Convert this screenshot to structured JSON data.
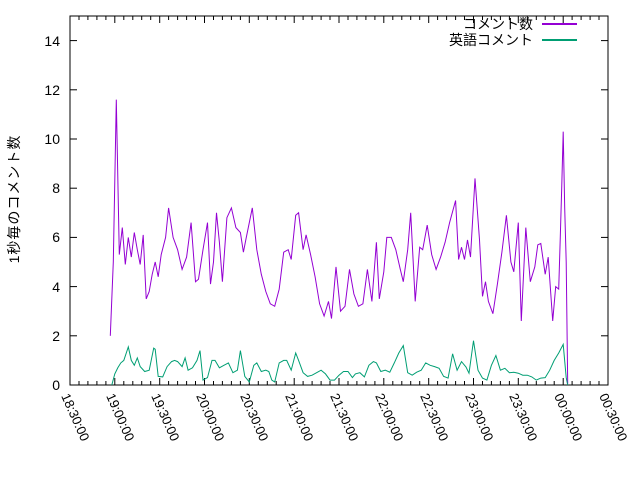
{
  "window": {
    "background": "#ffffff",
    "axis_color": "#000000"
  },
  "chart_data": {
    "type": "line",
    "title": "",
    "xlabel": "",
    "ylabel": "1秒毎のコメント数",
    "grid": false,
    "legend": {
      "position": "top-right"
    },
    "x_axis": {
      "start": "18:30:00",
      "end": "00:30:00",
      "tick_labels": [
        "18:30:00",
        "19:00:00",
        "19:30:00",
        "20:00:00",
        "20:30:00",
        "21:00:00",
        "21:30:00",
        "22:00:00",
        "22:30:00",
        "23:00:00",
        "23:30:00",
        "00:00:00",
        "00:30:00"
      ],
      "major_tick_minutes": 30,
      "minor_tick_minutes": 6
    },
    "y_axis": {
      "min": 0,
      "max": 15,
      "tick_step": 2,
      "tick_labels": [
        "0",
        "2",
        "4",
        "6",
        "8",
        "10",
        "12",
        "14"
      ]
    },
    "series": [
      {
        "name": "コメント数",
        "color": "#9400d3",
        "points": [
          [
            "18:57",
            2.0
          ],
          [
            "18:59",
            5.0
          ],
          [
            "19:01",
            11.6
          ],
          [
            "19:03",
            5.3
          ],
          [
            "19:05",
            6.4
          ],
          [
            "19:07",
            4.9
          ],
          [
            "19:09",
            6.0
          ],
          [
            "19:11",
            5.2
          ],
          [
            "19:13",
            6.2
          ],
          [
            "19:15",
            5.5
          ],
          [
            "19:17",
            4.9
          ],
          [
            "19:19",
            6.1
          ],
          [
            "19:21",
            3.5
          ],
          [
            "19:23",
            3.8
          ],
          [
            "19:25",
            4.5
          ],
          [
            "19:27",
            5.0
          ],
          [
            "19:29",
            4.4
          ],
          [
            "19:31",
            5.3
          ],
          [
            "19:34",
            6.0
          ],
          [
            "19:36",
            7.2
          ],
          [
            "19:39",
            6.0
          ],
          [
            "19:42",
            5.5
          ],
          [
            "19:45",
            4.7
          ],
          [
            "19:48",
            5.2
          ],
          [
            "19:51",
            6.6
          ],
          [
            "19:54",
            4.2
          ],
          [
            "19:56",
            4.3
          ],
          [
            "19:59",
            5.5
          ],
          [
            "20:02",
            6.6
          ],
          [
            "20:04",
            4.1
          ],
          [
            "20:06",
            5.0
          ],
          [
            "20:08",
            7.0
          ],
          [
            "20:10",
            5.8
          ],
          [
            "20:12",
            4.2
          ],
          [
            "20:15",
            6.8
          ],
          [
            "20:18",
            7.2
          ],
          [
            "20:21",
            6.4
          ],
          [
            "20:24",
            6.2
          ],
          [
            "20:26",
            5.4
          ],
          [
            "20:28",
            6.0
          ],
          [
            "20:32",
            7.2
          ],
          [
            "20:35",
            5.5
          ],
          [
            "20:38",
            4.5
          ],
          [
            "20:41",
            3.8
          ],
          [
            "20:44",
            3.3
          ],
          [
            "20:47",
            3.2
          ],
          [
            "20:50",
            3.9
          ],
          [
            "20:53",
            5.4
          ],
          [
            "20:56",
            5.5
          ],
          [
            "20:58",
            5.1
          ],
          [
            "21:01",
            6.9
          ],
          [
            "21:03",
            7.0
          ],
          [
            "21:06",
            5.5
          ],
          [
            "21:08",
            6.1
          ],
          [
            "21:11",
            5.3
          ],
          [
            "21:14",
            4.4
          ],
          [
            "21:17",
            3.3
          ],
          [
            "21:20",
            2.8
          ],
          [
            "21:23",
            3.4
          ],
          [
            "21:25",
            2.7
          ],
          [
            "21:28",
            4.8
          ],
          [
            "21:31",
            3.0
          ],
          [
            "21:34",
            3.2
          ],
          [
            "21:37",
            4.7
          ],
          [
            "21:40",
            3.7
          ],
          [
            "21:43",
            3.2
          ],
          [
            "21:46",
            3.3
          ],
          [
            "21:49",
            4.7
          ],
          [
            "21:52",
            3.4
          ],
          [
            "21:55",
            5.8
          ],
          [
            "21:57",
            3.5
          ],
          [
            "22:00",
            4.6
          ],
          [
            "22:02",
            6.0
          ],
          [
            "22:05",
            6.0
          ],
          [
            "22:08",
            5.5
          ],
          [
            "22:11",
            4.7
          ],
          [
            "22:13",
            4.2
          ],
          [
            "22:16",
            5.5
          ],
          [
            "22:18",
            7.0
          ],
          [
            "22:21",
            3.4
          ],
          [
            "22:24",
            5.6
          ],
          [
            "22:26",
            5.5
          ],
          [
            "22:29",
            6.5
          ],
          [
            "22:32",
            5.3
          ],
          [
            "22:35",
            4.7
          ],
          [
            "22:38",
            5.2
          ],
          [
            "22:41",
            5.8
          ],
          [
            "22:44",
            6.6
          ],
          [
            "22:48",
            7.5
          ],
          [
            "22:50",
            5.1
          ],
          [
            "22:52",
            5.6
          ],
          [
            "22:54",
            5.1
          ],
          [
            "22:56",
            5.9
          ],
          [
            "22:58",
            5.2
          ],
          [
            "23:01",
            8.4
          ],
          [
            "23:04",
            5.9
          ],
          [
            "23:06",
            3.6
          ],
          [
            "23:08",
            4.2
          ],
          [
            "23:10",
            3.4
          ],
          [
            "23:13",
            2.9
          ],
          [
            "23:16",
            4.1
          ],
          [
            "23:19",
            5.4
          ],
          [
            "23:22",
            6.9
          ],
          [
            "23:25",
            5.0
          ],
          [
            "23:27",
            4.6
          ],
          [
            "23:30",
            6.6
          ],
          [
            "23:32",
            2.6
          ],
          [
            "23:35",
            6.4
          ],
          [
            "23:38",
            4.2
          ],
          [
            "23:41",
            4.8
          ],
          [
            "23:43",
            5.7
          ],
          [
            "23:45",
            5.75
          ],
          [
            "23:48",
            4.5
          ],
          [
            "23:50",
            5.2
          ],
          [
            "23:53",
            2.6
          ],
          [
            "23:55",
            4.0
          ],
          [
            "23:57",
            3.9
          ],
          [
            "23:58",
            5.9
          ],
          [
            "23:59",
            8.0
          ],
          [
            "00:00",
            10.3
          ],
          [
            "00:01",
            7.2
          ],
          [
            "00:02",
            5.0
          ],
          [
            "00:03",
            0.05
          ]
        ]
      },
      {
        "name": "英語コメント",
        "color": "#009e73",
        "points": [
          [
            "18:58",
            0.0
          ],
          [
            "19:00",
            0.45
          ],
          [
            "19:02",
            0.7
          ],
          [
            "19:04",
            0.9
          ],
          [
            "19:06",
            1.0
          ],
          [
            "19:09",
            1.55
          ],
          [
            "19:11",
            1.0
          ],
          [
            "19:13",
            0.8
          ],
          [
            "19:15",
            1.1
          ],
          [
            "19:17",
            0.75
          ],
          [
            "19:20",
            0.55
          ],
          [
            "19:23",
            0.6
          ],
          [
            "19:26",
            1.5
          ],
          [
            "19:27",
            1.45
          ],
          [
            "19:29",
            0.35
          ],
          [
            "19:32",
            0.33
          ],
          [
            "19:35",
            0.75
          ],
          [
            "19:38",
            0.95
          ],
          [
            "19:40",
            1.0
          ],
          [
            "19:42",
            0.95
          ],
          [
            "19:45",
            0.75
          ],
          [
            "19:47",
            1.1
          ],
          [
            "19:49",
            0.6
          ],
          [
            "19:52",
            0.7
          ],
          [
            "19:55",
            1.0
          ],
          [
            "19:57",
            1.4
          ],
          [
            "19:59",
            0.2
          ],
          [
            "20:02",
            0.3
          ],
          [
            "20:05",
            1.0
          ],
          [
            "20:07",
            1.0
          ],
          [
            "20:10",
            0.7
          ],
          [
            "20:13",
            0.8
          ],
          [
            "20:16",
            0.9
          ],
          [
            "20:19",
            0.5
          ],
          [
            "20:22",
            0.6
          ],
          [
            "20:24",
            1.4
          ],
          [
            "20:27",
            0.35
          ],
          [
            "20:30",
            0.12
          ],
          [
            "20:33",
            0.8
          ],
          [
            "20:35",
            0.9
          ],
          [
            "20:38",
            0.55
          ],
          [
            "20:41",
            0.6
          ],
          [
            "20:43",
            0.55
          ],
          [
            "20:45",
            0.2
          ],
          [
            "20:47",
            0.12
          ],
          [
            "20:50",
            0.9
          ],
          [
            "20:53",
            1.0
          ],
          [
            "20:55",
            1.0
          ],
          [
            "20:58",
            0.6
          ],
          [
            "21:01",
            1.3
          ],
          [
            "21:03",
            1.0
          ],
          [
            "21:06",
            0.5
          ],
          [
            "21:09",
            0.35
          ],
          [
            "21:12",
            0.4
          ],
          [
            "21:15",
            0.5
          ],
          [
            "21:18",
            0.6
          ],
          [
            "21:21",
            0.45
          ],
          [
            "21:24",
            0.2
          ],
          [
            "21:27",
            0.2
          ],
          [
            "21:30",
            0.4
          ],
          [
            "21:33",
            0.55
          ],
          [
            "21:36",
            0.55
          ],
          [
            "21:39",
            0.3
          ],
          [
            "21:41",
            0.45
          ],
          [
            "21:44",
            0.5
          ],
          [
            "21:47",
            0.33
          ],
          [
            "21:50",
            0.8
          ],
          [
            "21:53",
            0.95
          ],
          [
            "21:55",
            0.9
          ],
          [
            "21:58",
            0.55
          ],
          [
            "22:01",
            0.6
          ],
          [
            "22:04",
            0.52
          ],
          [
            "22:07",
            0.9
          ],
          [
            "22:10",
            1.3
          ],
          [
            "22:13",
            1.6
          ],
          [
            "22:16",
            0.5
          ],
          [
            "22:19",
            0.4
          ],
          [
            "22:22",
            0.52
          ],
          [
            "22:25",
            0.6
          ],
          [
            "22:28",
            0.9
          ],
          [
            "22:31",
            0.8
          ],
          [
            "22:34",
            0.75
          ],
          [
            "22:37",
            0.68
          ],
          [
            "22:40",
            0.35
          ],
          [
            "22:43",
            0.28
          ],
          [
            "22:46",
            1.27
          ],
          [
            "22:49",
            0.6
          ],
          [
            "22:52",
            0.95
          ],
          [
            "22:55",
            0.73
          ],
          [
            "22:57",
            0.48
          ],
          [
            "23:00",
            1.8
          ],
          [
            "23:03",
            0.6
          ],
          [
            "23:06",
            0.28
          ],
          [
            "23:09",
            0.2
          ],
          [
            "23:12",
            0.8
          ],
          [
            "23:15",
            1.2
          ],
          [
            "23:18",
            0.6
          ],
          [
            "23:21",
            0.68
          ],
          [
            "23:24",
            0.5
          ],
          [
            "23:27",
            0.52
          ],
          [
            "23:30",
            0.48
          ],
          [
            "23:33",
            0.4
          ],
          [
            "23:36",
            0.4
          ],
          [
            "23:39",
            0.33
          ],
          [
            "23:42",
            0.2
          ],
          [
            "23:45",
            0.28
          ],
          [
            "23:48",
            0.3
          ],
          [
            "23:51",
            0.6
          ],
          [
            "23:54",
            1.0
          ],
          [
            "23:57",
            1.3
          ],
          [
            "00:00",
            1.65
          ],
          [
            "00:02",
            0.3
          ],
          [
            "00:03",
            0.0
          ]
        ]
      }
    ]
  }
}
